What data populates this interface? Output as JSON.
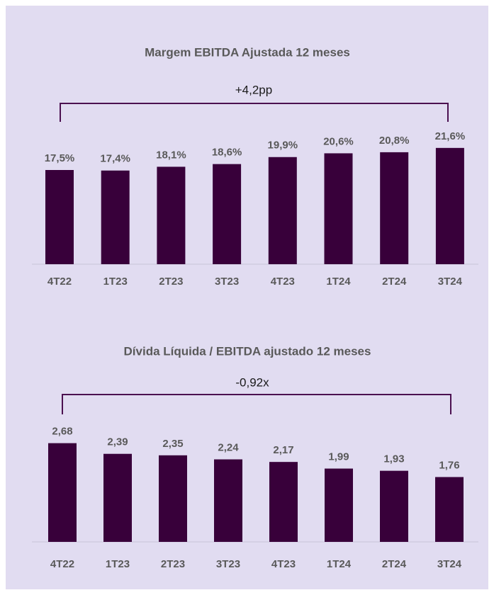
{
  "chart_data": [
    {
      "type": "bar",
      "title": "Margem EBITDA Ajustada 12 meses",
      "annotation": "+4,2pp",
      "categories": [
        "4T22",
        "1T23",
        "2T23",
        "3T23",
        "4T23",
        "1T24",
        "2T24",
        "3T24"
      ],
      "values": [
        17.5,
        17.4,
        18.1,
        18.6,
        19.9,
        20.6,
        20.8,
        21.6
      ],
      "value_labels": [
        "17,5%",
        "17,4%",
        "18,1%",
        "18,6%",
        "19,9%",
        "20,6%",
        "20,8%",
        "21,6%"
      ],
      "color": "#38003a"
    },
    {
      "type": "bar",
      "title": "Dívida Líquida / EBITDA ajustado 12 meses",
      "annotation": "-0,92x",
      "categories": [
        "4T22",
        "1T23",
        "2T23",
        "3T23",
        "4T23",
        "1T24",
        "2T24",
        "3T24"
      ],
      "values": [
        2.68,
        2.39,
        2.35,
        2.24,
        2.17,
        1.99,
        1.93,
        1.76
      ],
      "value_labels": [
        "2,68",
        "2,39",
        "2,35",
        "2,24",
        "2,17",
        "1,99",
        "1,93",
        "1,76"
      ],
      "color": "#38003a"
    }
  ]
}
